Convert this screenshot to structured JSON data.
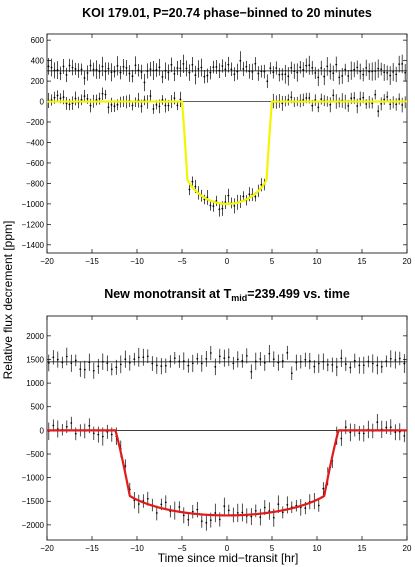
{
  "figure": {
    "ylabel": "Relative flux decrement [ppm]",
    "xlabel": "Time since mid−transit [hr]"
  },
  "chart_data": [
    {
      "type": "scatter",
      "title": "KOI 179.01, P=20.74 phase−binned to 20 minutes",
      "xlim": [
        -20,
        20
      ],
      "ylim": [
        -1480,
        660
      ],
      "xticks": [
        -20,
        -15,
        -10,
        -5,
        0,
        5,
        10,
        15,
        20
      ],
      "yticks": [
        -1400,
        -1200,
        -1000,
        -800,
        -600,
        -400,
        -200,
        0,
        200,
        400,
        600
      ],
      "grid": false,
      "reference_lines": [
        0,
        300
      ],
      "series": [
        {
          "role": "residuals",
          "offset": 300,
          "color": "#000000",
          "x_range": [
            -19.83,
            19.83
          ],
          "x_step": 0.333,
          "scatter": 80,
          "error": 75
        },
        {
          "role": "data",
          "offset": 0,
          "color": "#000000",
          "x_range": [
            -19.83,
            19.83
          ],
          "x_step": 0.333,
          "scatter": 60,
          "error": 60
        },
        {
          "role": "model",
          "color": "#f5f500",
          "depth": 1000,
          "half_duration": 5.0,
          "ingress": 0.6,
          "limb_darkening": 0.45
        }
      ]
    },
    {
      "type": "scatter",
      "title": "New monotransit at T",
      "title_sub": "mid",
      "title_suffix": "=239.499 vs. time",
      "xlim": [
        -20,
        20
      ],
      "ylim": [
        -2320,
        2420
      ],
      "xticks": [
        -20,
        -15,
        -10,
        -5,
        0,
        5,
        10,
        15,
        20
      ],
      "yticks": [
        -2000,
        -1500,
        -1000,
        -500,
        0,
        500,
        1000,
        1500,
        2000
      ],
      "grid": false,
      "reference_lines": [
        0,
        1450
      ],
      "series": [
        {
          "role": "residuals",
          "offset": 1450,
          "color": "#000000",
          "x_range": [
            -19.8,
            19.8
          ],
          "x_step": 0.5,
          "scatter": 170,
          "error": 160
        },
        {
          "role": "data",
          "offset": 0,
          "color": "#000000",
          "x_range": [
            -19.8,
            19.8
          ],
          "x_step": 0.5,
          "scatter": 170,
          "error": 160
        },
        {
          "role": "model",
          "color": "#e11a1a",
          "depth": 1800,
          "half_duration": 12.4,
          "ingress": 1.6,
          "limb_darkening": 0.45
        }
      ]
    }
  ]
}
